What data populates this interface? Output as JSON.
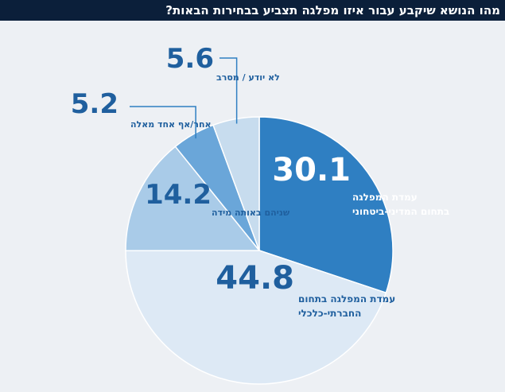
{
  "title": "מהו הנושא שיקבע עבור איזו מפלגה תצביע בבחירות הבאות?",
  "chart_data": {
    "type": "pie",
    "slices": [
      {
        "value": 30.1,
        "value_text": "30.1",
        "label_lines": [
          "עמדת המפלגה",
          "בתחום המדיני-ביטחוני"
        ],
        "color": "#2f7fc2"
      },
      {
        "value": 44.8,
        "value_text": "44.8",
        "label_lines": [
          "עמדת המפלגה בתחום",
          "החברתי-כלכלי"
        ],
        "color": "#dde9f5"
      },
      {
        "value": 14.2,
        "value_text": "14.2",
        "label_lines": [
          "שניהם באותה מידה"
        ],
        "color": "#a9cbe8"
      },
      {
        "value": 5.2,
        "value_text": "5.2",
        "label_lines": [
          "אחר/אף אחד מאלה"
        ],
        "color": "#6aa6d9"
      },
      {
        "value": 5.6,
        "value_text": "5.6",
        "label_lines": [
          "לא יודע / מסרב"
        ],
        "color": "#c7dcee"
      }
    ]
  },
  "colors": {
    "title_bg": "#0b1f3a",
    "panel_bg": "#edf0f4",
    "text_dark": "#1f5f9e",
    "text_light": "#ffffff",
    "leader": "#2f7fc2"
  }
}
